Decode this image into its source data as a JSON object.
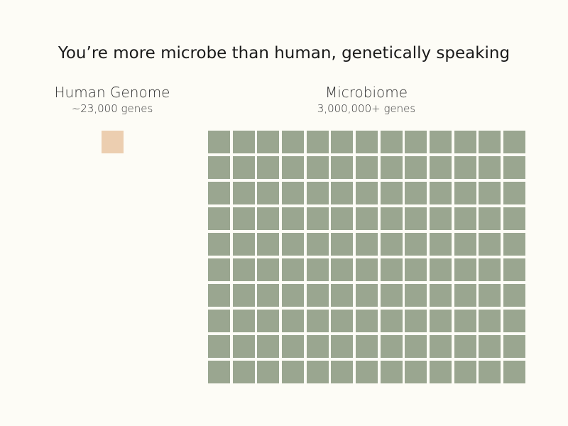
{
  "title": "You’re more microbe than human, genetically speaking",
  "human": {
    "heading": "Human Genome",
    "subheading": "~23,000 genes",
    "squares": 1,
    "color": "#ecceb0"
  },
  "microbiome": {
    "heading": "Microbiome",
    "subheading": "3,000,000+ genes",
    "rows": 10,
    "columns": 13,
    "color": "#9aa690"
  },
  "background": "#fdfcf6"
}
